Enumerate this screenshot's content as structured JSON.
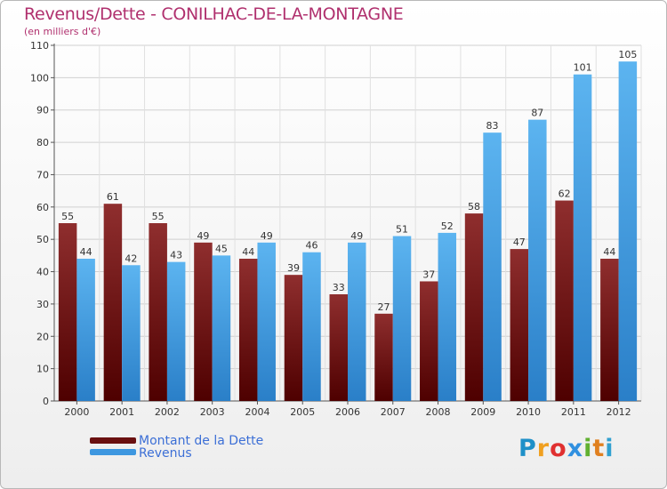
{
  "header": {
    "title": "Revenus/Dette - CONILHAC-DE-LA-MONTAGNE",
    "subtitle": "(en milliers d'€)"
  },
  "chart_data": {
    "type": "bar",
    "categories": [
      "2000",
      "2001",
      "2002",
      "2003",
      "2004",
      "2005",
      "2006",
      "2007",
      "2008",
      "2009",
      "2010",
      "2011",
      "2012"
    ],
    "series": [
      {
        "name": "Montant de la Dette",
        "values": [
          55,
          61,
          55,
          49,
          44,
          39,
          33,
          27,
          37,
          58,
          47,
          62,
          44
        ],
        "color": "#7a1a1a"
      },
      {
        "name": "Revenus",
        "values": [
          44,
          42,
          43,
          45,
          49,
          46,
          49,
          51,
          52,
          83,
          87,
          101,
          105
        ],
        "color": "#4aa3e6"
      }
    ],
    "yticks": [
      0,
      10,
      20,
      30,
      40,
      50,
      60,
      70,
      80,
      90,
      100,
      110
    ],
    "ylim": [
      0,
      110
    ],
    "grid": true,
    "legend_position": "bottom-left"
  },
  "legend": {
    "items": [
      {
        "label": "Montant de la Dette",
        "color": "#7a1a1a"
      },
      {
        "label": "Revenus",
        "color": "#4aa3e6"
      }
    ]
  },
  "logo": {
    "letters": [
      "P",
      "r",
      "o",
      "x",
      "i",
      "t",
      "i"
    ],
    "colors": [
      "#1e90c8",
      "#f0a020",
      "#e03030",
      "#3090e0",
      "#60b030",
      "#e08020",
      "#30a0d0"
    ]
  }
}
